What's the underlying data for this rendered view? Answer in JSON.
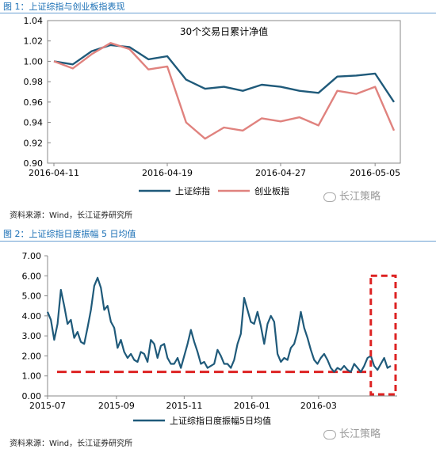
{
  "figure1": {
    "title": "图 1：上证综指与创业板指表现",
    "source": "资料来源：Wind，长江证券研究所",
    "watermark": "长江策略"
  },
  "figure2": {
    "title": "图 2：上证综指日度振幅 5 日均值",
    "source": "资料来源：Wind，长江证券研究所",
    "watermark": "长江策略"
  },
  "colors": {
    "sse": "#1f5a7a",
    "gem": "#e0827e",
    "ref": "#dd2222",
    "title": "#1a6fb5"
  },
  "chart_data": [
    {
      "type": "line",
      "title": "30个交易日累计净值",
      "xlabel": "",
      "ylabel": "",
      "ylim": [
        0.9,
        1.04
      ],
      "yticks": [
        "0.90",
        "0.92",
        "0.94",
        "0.96",
        "0.98",
        "1.00",
        "1.02",
        "1.04"
      ],
      "xticks": [
        "2016-04-11",
        "2016-04-19",
        "2016-04-27",
        "2016-05-05"
      ],
      "grid": false,
      "legend": "bottom-center",
      "series": [
        {
          "name": "上证综指",
          "x": [
            "2016-04-11",
            "2016-04-12",
            "2016-04-13",
            "2016-04-14",
            "2016-04-15",
            "2016-04-18",
            "2016-04-19",
            "2016-04-20",
            "2016-04-21",
            "2016-04-22",
            "2016-04-25",
            "2016-04-26",
            "2016-04-27",
            "2016-04-28",
            "2016-04-29",
            "2016-05-03",
            "2016-05-04",
            "2016-05-05",
            "2016-05-06"
          ],
          "values": [
            1.0,
            0.997,
            1.01,
            1.016,
            1.014,
            1.002,
            1.005,
            0.982,
            0.973,
            0.975,
            0.971,
            0.977,
            0.975,
            0.971,
            0.969,
            0.985,
            0.986,
            0.988,
            0.96
          ]
        },
        {
          "name": "创业板指",
          "x": [
            "2016-04-11",
            "2016-04-12",
            "2016-04-13",
            "2016-04-14",
            "2016-04-15",
            "2016-04-18",
            "2016-04-19",
            "2016-04-20",
            "2016-04-21",
            "2016-04-22",
            "2016-04-25",
            "2016-04-26",
            "2016-04-27",
            "2016-04-28",
            "2016-04-29",
            "2016-05-03",
            "2016-05-04",
            "2016-05-05",
            "2016-05-06"
          ],
          "values": [
            1.0,
            0.993,
            1.007,
            1.018,
            1.012,
            0.992,
            0.995,
            0.94,
            0.924,
            0.935,
            0.932,
            0.944,
            0.941,
            0.945,
            0.937,
            0.971,
            0.968,
            0.975,
            0.932
          ]
        }
      ]
    },
    {
      "type": "line",
      "title": "",
      "xlabel": "",
      "ylabel": "",
      "ylim": [
        0,
        7
      ],
      "yticks": [
        "0.00",
        "1.00",
        "2.00",
        "3.00",
        "4.00",
        "5.00",
        "6.00",
        "7.00"
      ],
      "xticks": [
        "2015-07",
        "2015-09",
        "2015-11",
        "2016-01",
        "2016-03"
      ],
      "grid": false,
      "legend": "bottom-center",
      "series": [
        {
          "name": "上证综指日度振幅5日均值",
          "x": [
            "2015-07-01",
            "2015-07-04",
            "2015-07-07",
            "2015-07-10",
            "2015-07-13",
            "2015-07-16",
            "2015-07-19",
            "2015-07-22",
            "2015-07-25",
            "2015-07-28",
            "2015-07-31",
            "2015-08-03",
            "2015-08-06",
            "2015-08-09",
            "2015-08-12",
            "2015-08-15",
            "2015-08-18",
            "2015-08-21",
            "2015-08-24",
            "2015-08-27",
            "2015-08-30",
            "2015-09-02",
            "2015-09-05",
            "2015-09-08",
            "2015-09-11",
            "2015-09-14",
            "2015-09-17",
            "2015-09-20",
            "2015-09-23",
            "2015-09-26",
            "2015-09-29",
            "2015-10-02",
            "2015-10-05",
            "2015-10-08",
            "2015-10-11",
            "2015-10-14",
            "2015-10-17",
            "2015-10-20",
            "2015-10-23",
            "2015-10-26",
            "2015-10-29",
            "2015-11-01",
            "2015-11-04",
            "2015-11-07",
            "2015-11-10",
            "2015-11-13",
            "2015-11-16",
            "2015-11-19",
            "2015-11-22",
            "2015-11-25",
            "2015-11-28",
            "2015-12-01",
            "2015-12-04",
            "2015-12-07",
            "2015-12-10",
            "2015-12-13",
            "2015-12-16",
            "2015-12-19",
            "2015-12-22",
            "2015-12-25",
            "2015-12-28",
            "2015-12-31",
            "2016-01-03",
            "2016-01-06",
            "2016-01-09",
            "2016-01-12",
            "2016-01-15",
            "2016-01-18",
            "2016-01-21",
            "2016-01-24",
            "2016-01-27",
            "2016-01-30",
            "2016-02-02",
            "2016-02-05",
            "2016-02-08",
            "2016-02-11",
            "2016-02-14",
            "2016-02-17",
            "2016-02-20",
            "2016-02-23",
            "2016-02-26",
            "2016-02-29",
            "2016-03-03",
            "2016-03-06",
            "2016-03-09",
            "2016-03-12",
            "2016-03-15",
            "2016-03-18",
            "2016-03-21",
            "2016-03-24",
            "2016-03-27",
            "2016-03-30",
            "2016-04-02",
            "2016-04-05",
            "2016-04-08",
            "2016-04-11",
            "2016-04-14",
            "2016-04-17",
            "2016-04-20",
            "2016-04-23",
            "2016-04-26",
            "2016-04-29",
            "2016-05-02",
            "2016-05-05"
          ],
          "values": [
            4.2,
            3.8,
            2.8,
            3.6,
            5.3,
            4.5,
            3.6,
            3.8,
            2.9,
            3.2,
            2.7,
            2.6,
            3.4,
            4.3,
            5.5,
            5.9,
            5.4,
            4.3,
            4.5,
            3.7,
            3.4,
            2.4,
            2.8,
            2.2,
            1.9,
            2.1,
            1.8,
            1.7,
            2.2,
            2.1,
            1.7,
            2.8,
            2.6,
            1.9,
            2.5,
            2.6,
            1.9,
            1.6,
            1.6,
            1.9,
            1.4,
            2.0,
            2.6,
            3.3,
            2.7,
            2.2,
            1.6,
            1.7,
            1.4,
            1.5,
            1.6,
            2.3,
            2.0,
            1.6,
            1.6,
            1.4,
            1.8,
            2.6,
            3.1,
            4.9,
            4.3,
            3.7,
            3.6,
            4.2,
            3.5,
            2.6,
            3.6,
            4.0,
            3.7,
            2.1,
            1.7,
            1.9,
            1.8,
            2.4,
            2.6,
            3.2,
            4.2,
            3.4,
            2.9,
            2.3,
            1.8,
            1.6,
            1.9,
            2.1,
            1.8,
            1.4,
            1.2,
            1.4,
            1.3,
            1.5,
            1.3,
            1.2,
            1.6,
            1.4,
            1.2,
            1.5,
            1.9,
            2.0,
            1.5,
            1.3,
            1.6,
            1.9,
            1.4,
            1.5
          ]
        }
      ],
      "reference_line": {
        "value": 1.2,
        "style": "dashed"
      },
      "highlight_box": {
        "x_from": "2016-04-17",
        "x_to": "2016-05-05",
        "style": "dashed"
      }
    }
  ]
}
